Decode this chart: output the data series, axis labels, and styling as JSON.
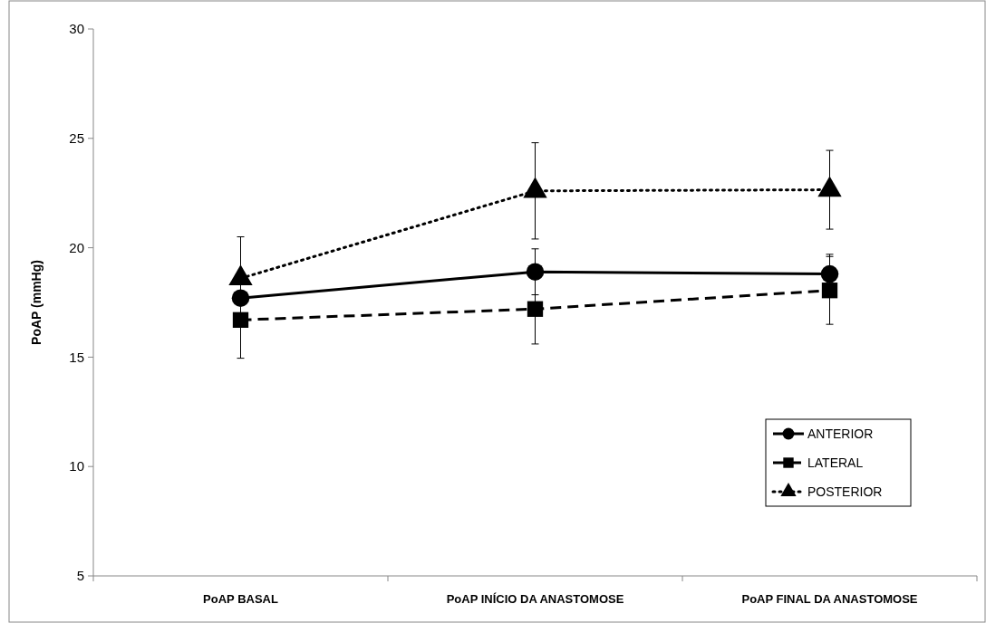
{
  "chart_data": {
    "type": "line",
    "ylabel": "PoAP (mmHg)",
    "categories": [
      "PoAP BASAL",
      "PoAP INÍCIO DA ANASTOMOSE",
      "PoAP FINAL DA ANASTOMOSE"
    ],
    "series": [
      {
        "name": "ANTERIOR",
        "color": "#000000",
        "marker": "circle",
        "line_style": "solid",
        "values": [
          17.7,
          18.9,
          18.8
        ],
        "errors": [
          null,
          1.05,
          0.9
        ]
      },
      {
        "name": "LATERAL",
        "color": "#000000",
        "marker": "square",
        "line_style": "dashed",
        "values": [
          16.7,
          17.2,
          18.05
        ],
        "errors": [
          1.75,
          1.6,
          1.55
        ]
      },
      {
        "name": "POSTERIOR",
        "color": "#000000",
        "marker": "triangle",
        "line_style": "dotted",
        "values": [
          18.6,
          22.6,
          22.65
        ],
        "errors": [
          1.9,
          2.2,
          1.8
        ]
      }
    ],
    "ylim": [
      5,
      30
    ],
    "yticks": [
      5,
      10,
      15,
      20,
      25,
      30
    ],
    "grid": false,
    "legend": "bottom right"
  }
}
